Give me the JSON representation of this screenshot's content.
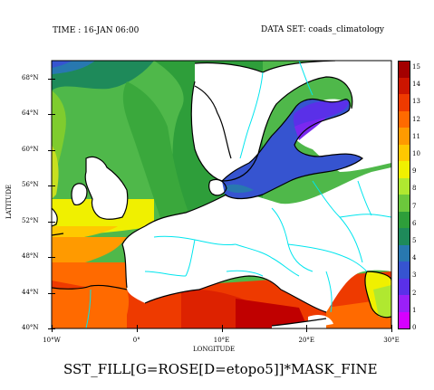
{
  "header": {
    "time_label": "TIME : 16-JAN 06:00",
    "dataset_label": "DATA SET: coads_climatology"
  },
  "map": {
    "title": "SST_FILL[G=ROSE[D=etopo5]]*MASK_FINE",
    "xlabel": "LONGITUDE",
    "ylabel": "LATITUDE",
    "x_ticks": [
      "10°W",
      "0°",
      "10°E",
      "20°E",
      "30°E"
    ],
    "y_ticks": [
      "68°N",
      "64°N",
      "60°N",
      "56°N",
      "52°N",
      "48°N",
      "44°N",
      "40°N"
    ],
    "lon_range": [
      -10,
      30
    ],
    "lat_range": [
      40,
      70
    ],
    "coastline_color": "#000000",
    "border_color": "#00e5ee"
  },
  "colorbar": {
    "labels": [
      "15",
      "14",
      "13",
      "12",
      "11",
      "10",
      "9",
      "8",
      "7",
      "6",
      "5",
      "4",
      "3",
      "2",
      "1",
      "0"
    ],
    "colors": [
      "#a30000",
      "#cc1500",
      "#ee3a00",
      "#ff6a00",
      "#ff9a00",
      "#ffc800",
      "#f0f000",
      "#b0e830",
      "#6cc83c",
      "#2e9e3a",
      "#1e8a5a",
      "#2878b0",
      "#3654d0",
      "#5a30e8",
      "#9a20f8",
      "#d600ff"
    ]
  }
}
